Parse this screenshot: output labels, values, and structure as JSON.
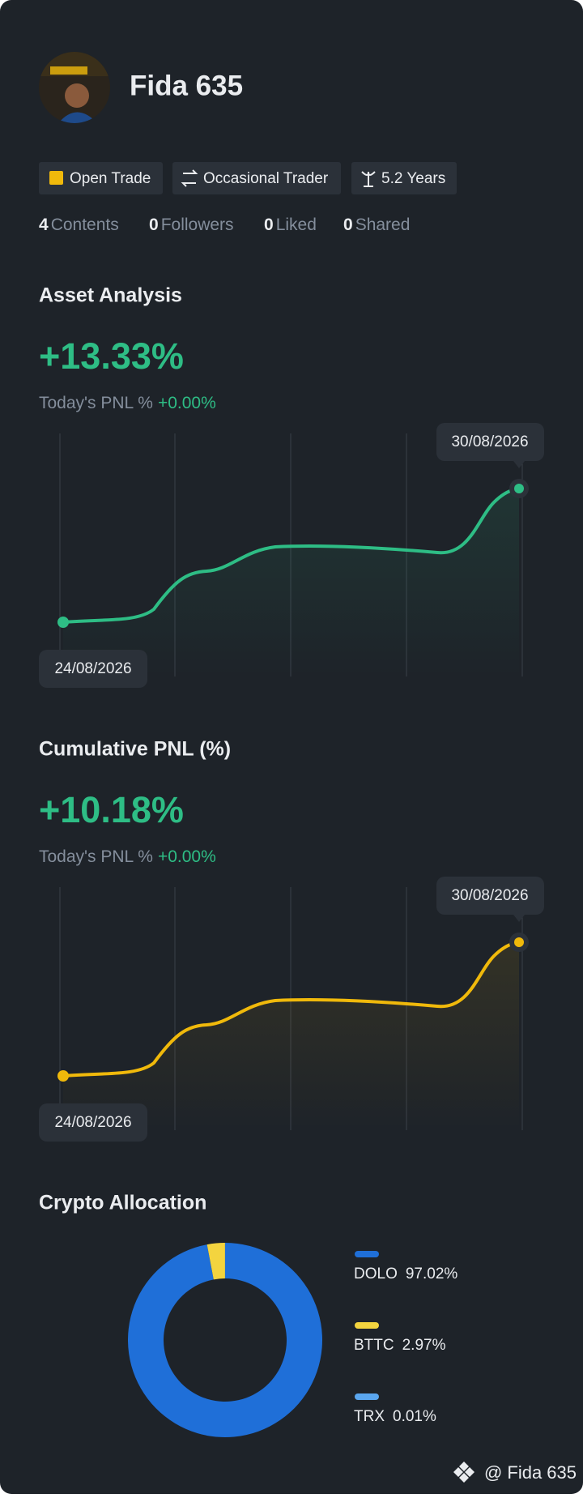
{
  "profile": {
    "name": "Fida 635",
    "tags": [
      "Open Trade",
      "Occasional Trader",
      "5.2 Years"
    ],
    "stats": [
      {
        "value": 4,
        "label": "Contents"
      },
      {
        "value": 0,
        "label": "Followers"
      },
      {
        "value": 0,
        "label": "Liked"
      },
      {
        "value": 0,
        "label": "Shared"
      }
    ]
  },
  "asset_analysis": {
    "title": "Asset Analysis",
    "value": "+13.33%",
    "today_label": "Today's PNL %",
    "today_value": "+0.00%",
    "start_date": "24/08/2026",
    "end_date": "30/08/2026"
  },
  "cumulative_pnl": {
    "title": "Cumulative PNL (%)",
    "value": "+10.18%",
    "today_label": "Today's PNL %",
    "today_value": "+0.00%",
    "start_date": "24/08/2026",
    "end_date": "30/08/2026"
  },
  "chart_data": {
    "type": "pie",
    "title": "Crypto Allocation",
    "categories": [
      "DOLO",
      "BTTC",
      "TRX"
    ],
    "values": [
      97.02,
      2.97,
      0.01
    ],
    "value_labels": [
      "97.02%",
      "2.97%",
      "0.01%"
    ],
    "colors": [
      "#1f6fd8",
      "#f3d43f",
      "#5aa6ee"
    ]
  },
  "footer": {
    "watermark": "@ Fida 635"
  }
}
